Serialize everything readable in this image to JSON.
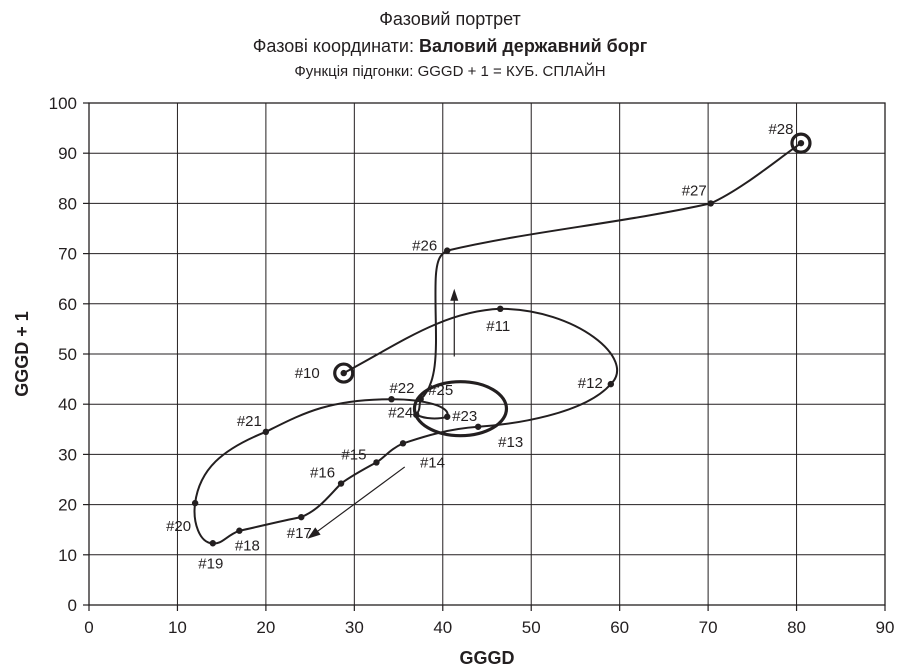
{
  "chart_data": {
    "type": "line",
    "title_line1": "Фазовий портрет",
    "title_line2_prefix": "Фазові координати: ",
    "title_line2_bold": "Валовий державний борг",
    "title_line3": "Функція підгонки: GGGD + 1 = КУБ. СПЛАЙН",
    "xlabel": "GGGD",
    "ylabel": "GGGD + 1",
    "xlim": [
      0,
      90
    ],
    "ylim": [
      0,
      100
    ],
    "xticks": [
      0,
      10,
      20,
      30,
      40,
      50,
      60,
      70,
      80,
      90
    ],
    "yticks": [
      0,
      10,
      20,
      30,
      40,
      50,
      60,
      70,
      80,
      90,
      100
    ],
    "grid": true,
    "points": [
      {
        "label": "#10",
        "x": 28.8,
        "y": 46.2
      },
      {
        "label": "#11",
        "x": 46.5,
        "y": 59.0
      },
      {
        "label": "#12",
        "x": 59.0,
        "y": 44.0
      },
      {
        "label": "#13",
        "x": 44.0,
        "y": 35.5
      },
      {
        "label": "#14",
        "x": 35.5,
        "y": 32.2
      },
      {
        "label": "#15",
        "x": 32.5,
        "y": 28.4
      },
      {
        "label": "#16",
        "x": 28.5,
        "y": 24.2
      },
      {
        "label": "#17",
        "x": 24.0,
        "y": 17.5
      },
      {
        "label": "#18",
        "x": 17.0,
        "y": 14.8
      },
      {
        "label": "#19",
        "x": 14.0,
        "y": 12.3
      },
      {
        "label": "#20",
        "x": 12.0,
        "y": 20.3
      },
      {
        "label": "#21",
        "x": 20.0,
        "y": 34.5
      },
      {
        "label": "#22",
        "x": 34.2,
        "y": 41.0
      },
      {
        "label": "#23",
        "x": 40.5,
        "y": 37.5
      },
      {
        "label": "#24",
        "x": 37.0,
        "y": 37.9
      },
      {
        "label": "#25",
        "x": 37.5,
        "y": 41.0
      },
      {
        "label": "#26",
        "x": 40.5,
        "y": 70.6
      },
      {
        "label": "#27",
        "x": 70.3,
        "y": 80.0
      },
      {
        "label": "#28",
        "x": 80.5,
        "y": 92.0
      }
    ]
  }
}
